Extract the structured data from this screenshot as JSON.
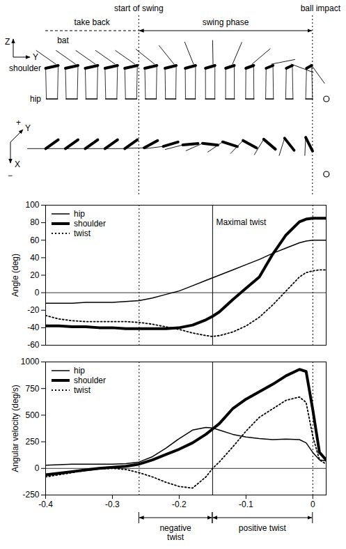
{
  "diagram": {
    "phases": {
      "take_back": "take back",
      "start": "start of swing",
      "swing": "swing phase",
      "impact": "ball impact"
    },
    "labels": {
      "bat": "bat",
      "shoulder": "shoulder",
      "hip": "hip"
    },
    "side_axes": {
      "vertical": "Z",
      "horizontal": "Y"
    },
    "top_axes": {
      "plus": "+",
      "y": "Y",
      "x": "X",
      "minus": "−"
    }
  },
  "chart_data": [
    {
      "type": "line",
      "y_label": "Angle (deg)",
      "x": [
        -0.4,
        -0.38,
        -0.36,
        -0.34,
        -0.32,
        -0.3,
        -0.28,
        -0.26,
        -0.24,
        -0.22,
        -0.2,
        -0.18,
        -0.16,
        -0.15,
        -0.14,
        -0.12,
        -0.1,
        -0.08,
        -0.06,
        -0.04,
        -0.02,
        -0.01,
        0,
        0.01,
        0.02
      ],
      "xlim": [
        -0.4,
        0.02
      ],
      "ylim": [
        -60,
        100
      ],
      "yticks": [
        -60,
        -40,
        -20,
        0,
        20,
        40,
        60,
        80,
        100
      ],
      "tick_labels": "y",
      "legend": "top-left",
      "series": [
        {
          "name": "hip",
          "color": "#000000",
          "line_style": "solid",
          "values": [
            -12,
            -12,
            -12,
            -11,
            -11,
            -11,
            -10,
            -9,
            -6,
            -2,
            2,
            8,
            14,
            17,
            20,
            26,
            32,
            38,
            45,
            51,
            57,
            59,
            60,
            60,
            60
          ]
        },
        {
          "name": "shoulder",
          "color": "#000000",
          "line_style": "solid",
          "values": [
            -38,
            -38,
            -39,
            -39,
            -40,
            -40,
            -41,
            -41,
            -41,
            -41,
            -40,
            -37,
            -31,
            -27,
            -22,
            -8,
            5,
            18,
            44,
            66,
            81,
            84,
            85,
            85,
            85
          ]
        },
        {
          "name": "twist",
          "color": "#000000",
          "line_style": "dotted",
          "values": [
            -26,
            -30,
            -32,
            -33,
            -33,
            -33,
            -33,
            -34,
            -36,
            -39,
            -42,
            -46,
            -49,
            -50,
            -49,
            -45,
            -38,
            -28,
            -14,
            2,
            18,
            23,
            25,
            26,
            26
          ]
        }
      ],
      "hlines": [
        0
      ],
      "vlines": [
        {
          "value": -0.26,
          "line_style": "dotted"
        },
        {
          "value": -0.15,
          "line_style": "solid"
        },
        {
          "value": 0,
          "line_style": "dotted"
        }
      ],
      "annotations": [
        {
          "text": "Maximal twist",
          "x": -0.15,
          "y": 80
        }
      ]
    },
    {
      "type": "line",
      "y_label": "Angular velocity (deg/s)",
      "x": [
        -0.4,
        -0.38,
        -0.36,
        -0.34,
        -0.32,
        -0.3,
        -0.28,
        -0.26,
        -0.24,
        -0.22,
        -0.2,
        -0.18,
        -0.16,
        -0.15,
        -0.14,
        -0.12,
        -0.1,
        -0.08,
        -0.06,
        -0.04,
        -0.02,
        -0.01,
        0,
        0.01,
        0.02
      ],
      "xlim": [
        -0.4,
        0.02
      ],
      "xticks": [
        -0.4,
        -0.3,
        -0.2,
        -0.1,
        0
      ],
      "ylim": [
        -250,
        1000
      ],
      "yticks": [
        -250,
        0,
        250,
        500,
        750,
        1000
      ],
      "legend": "top-left",
      "series": [
        {
          "name": "hip",
          "color": "#000000",
          "line_style": "solid",
          "values": [
            30,
            35,
            40,
            40,
            40,
            40,
            45,
            60,
            110,
            190,
            280,
            360,
            385,
            380,
            360,
            320,
            295,
            280,
            270,
            275,
            270,
            240,
            150,
            80,
            70
          ]
        },
        {
          "name": "shoulder",
          "color": "#000000",
          "line_style": "solid",
          "values": [
            -60,
            -45,
            -30,
            -15,
            0,
            10,
            20,
            40,
            80,
            130,
            180,
            240,
            320,
            370,
            420,
            560,
            650,
            720,
            790,
            870,
            930,
            910,
            550,
            150,
            80
          ]
        },
        {
          "name": "twist",
          "color": "#000000",
          "line_style": "dotted",
          "values": [
            -80,
            -60,
            -40,
            -20,
            -5,
            0,
            -10,
            -40,
            -80,
            -130,
            -170,
            -185,
            -80,
            0,
            60,
            200,
            350,
            480,
            560,
            640,
            670,
            620,
            300,
            80,
            40
          ]
        }
      ],
      "hlines": [
        0
      ],
      "vlines": [
        {
          "value": -0.26,
          "line_style": "dotted"
        },
        {
          "value": -0.15,
          "line_style": "solid"
        },
        {
          "value": 0,
          "line_style": "dotted"
        }
      ],
      "intervals": [
        {
          "text": "negative twist",
          "x1": -0.26,
          "x2": -0.15
        },
        {
          "text": "positive twist",
          "x1": -0.15,
          "x2": 0
        }
      ]
    }
  ]
}
